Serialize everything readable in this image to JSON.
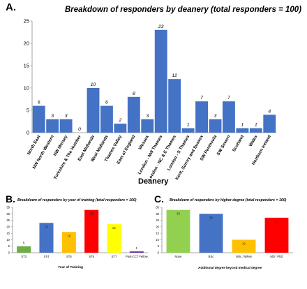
{
  "panels": {
    "A": {
      "letter": "A."
    },
    "B": {
      "letter": "B."
    },
    "C": {
      "letter": "C."
    }
  },
  "chart_data": [
    {
      "type": "bar",
      "title": "Breakdown of responders by deanery (total responders = 100)",
      "xlabel": "Deanery",
      "ylabel": "",
      "ylim": [
        0,
        25
      ],
      "yticks": [
        0,
        5,
        10,
        15,
        20,
        25
      ],
      "grid": false,
      "legend": "none",
      "bar_color": "#4472c4",
      "data_labels": true,
      "categories": [
        "North East",
        "NW North Western",
        "NW Mersey",
        "Yorkshire & The Humber",
        "East Midlands",
        "West Midlands",
        "Thames Valley",
        "East of England",
        "Wessex",
        "London - NW Thames",
        "London - NC & E Thames",
        "London - S Thames",
        "Kent, Surrey and Sussex",
        "SW Peninsula",
        "SW Severn",
        "Scotland",
        "Wales",
        "Northern Ireland"
      ],
      "values": [
        6,
        3,
        3,
        0,
        10,
        6,
        2,
        8,
        3,
        23,
        12,
        1,
        7,
        3,
        7,
        1,
        1,
        4
      ]
    },
    {
      "type": "bar",
      "title": "Breakdown of responders by year of training (total responders = 100)",
      "xlabel": "Year of Training",
      "ylabel": "",
      "ylim": [
        0,
        35
      ],
      "yticks": [
        0,
        5,
        10,
        15,
        20,
        25,
        30,
        35
      ],
      "grid": false,
      "legend": "none",
      "data_labels": true,
      "categories": [
        "ST3",
        "ST4",
        "ST5",
        "ST6",
        "ST7",
        "Post-CCT Fellow"
      ],
      "values": [
        5,
        23,
        16,
        33,
        22,
        1
      ],
      "colors": [
        "#70ad47",
        "#4472c4",
        "#ffc000",
        "#ff0000",
        "#ffff00",
        "#7030a0"
      ]
    },
    {
      "type": "bar",
      "title": "Breakdown of responders by higher degree (total responders = 100)",
      "xlabel": "Additional degree beyond medical degree",
      "ylabel": "",
      "ylim": [
        0,
        35
      ],
      "yticks": [
        0,
        5,
        10,
        15,
        20,
        25,
        30,
        35
      ],
      "grid": false,
      "legend": "none",
      "data_labels": true,
      "categories": [
        "None",
        "BSc",
        "MSc / MRes",
        "MD / PhD"
      ],
      "values": [
        33,
        30,
        10,
        27
      ],
      "colors": [
        "#92d050",
        "#4472c4",
        "#ffc000",
        "#ff0000"
      ]
    }
  ]
}
